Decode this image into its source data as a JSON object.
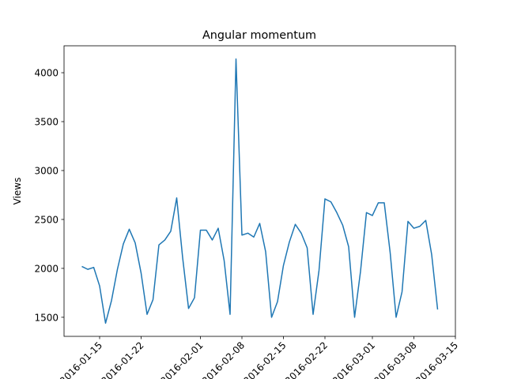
{
  "chart_data": {
    "type": "line",
    "title": "Angular momentum",
    "y_label": "Views",
    "x": [
      "2016-01-12",
      "2016-01-13",
      "2016-01-14",
      "2016-01-15",
      "2016-01-16",
      "2016-01-17",
      "2016-01-18",
      "2016-01-19",
      "2016-01-20",
      "2016-01-21",
      "2016-01-22",
      "2016-01-23",
      "2016-01-24",
      "2016-01-25",
      "2016-01-26",
      "2016-01-27",
      "2016-01-28",
      "2016-01-29",
      "2016-01-30",
      "2016-01-31",
      "2016-02-01",
      "2016-02-02",
      "2016-02-03",
      "2016-02-04",
      "2016-02-05",
      "2016-02-06",
      "2016-02-07",
      "2016-02-08",
      "2016-02-09",
      "2016-02-10",
      "2016-02-11",
      "2016-02-12",
      "2016-02-13",
      "2016-02-14",
      "2016-02-15",
      "2016-02-16",
      "2016-02-17",
      "2016-02-18",
      "2016-02-19",
      "2016-02-20",
      "2016-02-21",
      "2016-02-22",
      "2016-02-23",
      "2016-02-24",
      "2016-02-25",
      "2016-02-26",
      "2016-02-27",
      "2016-02-28",
      "2016-02-29",
      "2016-03-01",
      "2016-03-02",
      "2016-03-03",
      "2016-03-04",
      "2016-03-05",
      "2016-03-06",
      "2016-03-07",
      "2016-03-08",
      "2016-03-09",
      "2016-03-10",
      "2016-03-11",
      "2016-03-12"
    ],
    "series": [
      {
        "name": "Views",
        "color": "#1f77b4",
        "values": [
          2020,
          1990,
          2010,
          1820,
          1440,
          1670,
          1990,
          2250,
          2400,
          2260,
          1950,
          1530,
          1680,
          2240,
          2290,
          2380,
          2720,
          2110,
          1590,
          1700,
          2390,
          2390,
          2290,
          2410,
          2080,
          1530,
          4140,
          2340,
          2360,
          2320,
          2460,
          2170,
          1500,
          1660,
          2030,
          2270,
          2450,
          2360,
          2210,
          1530,
          1980,
          2710,
          2680,
          2570,
          2440,
          2220,
          1500,
          1970,
          2570,
          2540,
          2670,
          2670,
          2160,
          1500,
          1760,
          2480,
          2410,
          2430,
          2490,
          2140,
          1580
        ]
      }
    ],
    "xlim": [
      "2016-01-09",
      "2016-03-15"
    ],
    "xticks": [
      "2016-01-15",
      "2016-01-22",
      "2016-02-01",
      "2016-02-08",
      "2016-02-15",
      "2016-02-22",
      "2016-03-01",
      "2016-03-08",
      "2016-03-15"
    ],
    "ylim": [
      1305,
      4275
    ],
    "yticks": [
      1500,
      2000,
      2500,
      3000,
      3500,
      4000
    ]
  }
}
